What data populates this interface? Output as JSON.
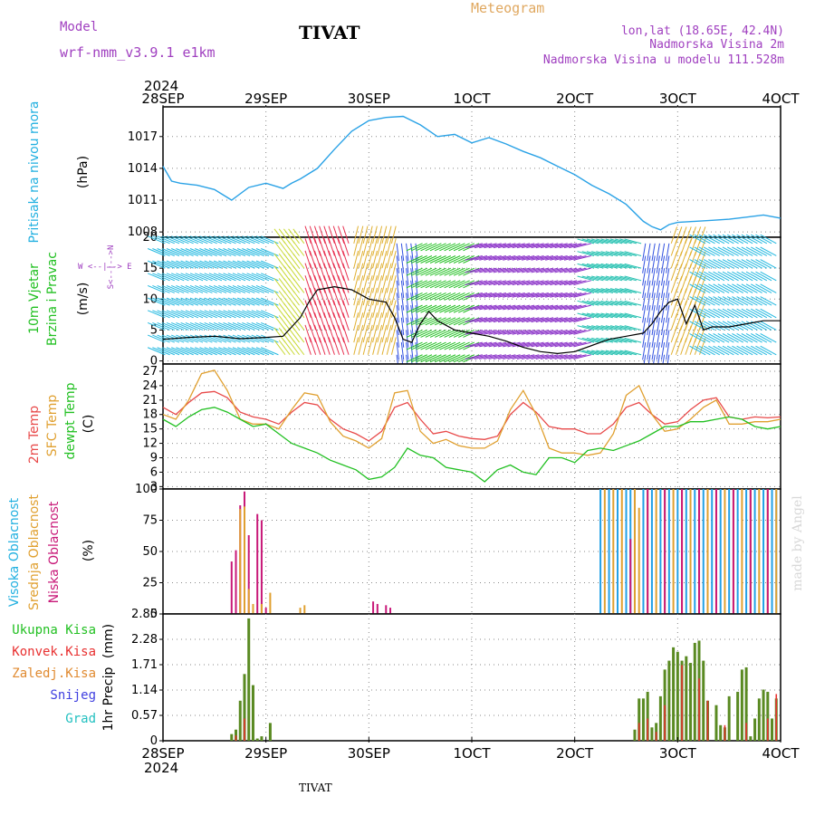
{
  "header": {
    "model_label": "Model",
    "model_name": "wrf-nmm_v3.9.1 e1km",
    "location_title": "TIVAT",
    "product_title": "Meteogram",
    "coords": "lon,lat (18.65E, 42.4N)",
    "elevation": "Nadmorska Visina 2m",
    "model_elevation": "Nadmorska Visina u modelu 111.528m"
  },
  "footer": {
    "location": "TIVAT",
    "credit": "made by Angel"
  },
  "time_axis": {
    "year": "2024",
    "ticks": [
      "28SEP",
      "29SEP",
      "30SEP",
      "1OCT",
      "2OCT",
      "3OCT",
      "4OCT"
    ]
  },
  "colors": {
    "pressure": "#2aa2e6",
    "wind_speed": "#000000",
    "temp_2m": "#e84a4a",
    "temp_sfc": "#e0a030",
    "dewpoint": "#22c022",
    "cloud_high": "#22a0e6",
    "cloud_mid": "#e0a030",
    "cloud_low": "#c81878",
    "precip_total": "#5a8a22",
    "precip_conv": "#e83030",
    "label_cyan": "#22b0e0",
    "label_green": "#22c022",
    "label_red": "#e83030",
    "label_orange": "#e08a30",
    "label_blue": "#4040e0",
    "label_teal": "#22c0c0",
    "label_magenta": "#c81878",
    "label_purple": "#a040c0"
  },
  "chart_data": [
    {
      "type": "line",
      "panel": "pressure",
      "ylabel_left": "Pritisak na nivou mora",
      "units": "(hPa)",
      "ylim": [
        1007.5,
        1019.8
      ],
      "yticks": [
        "1008",
        "1011",
        "1014",
        "1017"
      ],
      "x_range": [
        0,
        144
      ],
      "series": [
        {
          "key": "pressure",
          "x": [
            0,
            2,
            4,
            8,
            12,
            16,
            20,
            24,
            28,
            30,
            32,
            36,
            40,
            44,
            48,
            52,
            56,
            60,
            64,
            68,
            72,
            76,
            80,
            84,
            88,
            92,
            96,
            100,
            104,
            108,
            112,
            114,
            116,
            118,
            120,
            124,
            128,
            132,
            136,
            140,
            144
          ],
          "y": [
            1014.2,
            1012.8,
            1012.6,
            1012.4,
            1012.0,
            1011.0,
            1012.2,
            1012.6,
            1012.1,
            1012.6,
            1013.0,
            1014.0,
            1015.8,
            1017.5,
            1018.5,
            1018.8,
            1018.9,
            1018.1,
            1017.0,
            1017.2,
            1016.4,
            1016.9,
            1016.3,
            1015.6,
            1015.0,
            1014.2,
            1013.4,
            1012.4,
            1011.6,
            1010.6,
            1009.0,
            1008.5,
            1008.2,
            1008.7,
            1008.9,
            1009.0,
            1009.1,
            1009.2,
            1009.4,
            1009.6,
            1009.3
          ]
        }
      ]
    },
    {
      "type": "line",
      "panel": "wind",
      "ylabel_left1": "10m Vjetar",
      "ylabel_left2": "Brzina i Pravac",
      "units": "(m/s)",
      "legend_compass": "W <--|--> E",
      "legend_compass_v": "S<--|-->N",
      "ylim": [
        -0.5,
        20
      ],
      "yticks": [
        "0",
        "5",
        "10",
        "15",
        "20"
      ],
      "x_range": [
        0,
        144
      ],
      "series": [
        {
          "key": "wind_speed",
          "x": [
            0,
            6,
            12,
            18,
            24,
            28,
            30,
            32,
            34,
            36,
            40,
            44,
            48,
            52,
            54,
            56,
            58,
            60,
            62,
            64,
            68,
            72,
            76,
            80,
            84,
            88,
            92,
            96,
            100,
            104,
            108,
            112,
            114,
            116,
            118,
            120,
            122,
            124,
            126,
            128,
            132,
            136,
            140,
            144
          ],
          "y": [
            3.5,
            3.8,
            4.0,
            3.6,
            3.8,
            4.0,
            5.5,
            7.0,
            9.5,
            11.5,
            12.0,
            11.5,
            10.0,
            9.5,
            7.0,
            3.5,
            3.0,
            6.0,
            8.0,
            6.5,
            5.0,
            4.5,
            4.0,
            3.2,
            2.2,
            1.5,
            1.2,
            1.5,
            2.5,
            3.5,
            4.0,
            4.5,
            6.0,
            8.0,
            9.5,
            10.0,
            6.0,
            9.0,
            5.0,
            5.5,
            5.5,
            6.0,
            6.5,
            6.5
          ]
        }
      ],
      "barbs": {
        "rows_y": [
          1,
          3,
          5,
          7,
          9,
          11,
          13,
          15,
          17,
          19
        ],
        "direction_segments": [
          {
            "x_from": 0,
            "x_to": 28,
            "u": -2.4,
            "v": 1.0,
            "color": "#22b8e0"
          },
          {
            "x_from": 28,
            "x_to": 34,
            "u": -1.5,
            "v": 2.0,
            "color": "#c8d830"
          },
          {
            "x_from": 34,
            "x_to": 44,
            "u": -0.8,
            "v": 2.4,
            "color": "#e83050"
          },
          {
            "x_from": 44,
            "x_to": 54,
            "u": 0.6,
            "v": 2.4,
            "color": "#e0b030"
          },
          {
            "x_from": 54,
            "x_to": 60,
            "u": 0.3,
            "v": -2.4,
            "color": "#3050e0"
          },
          {
            "x_from": 60,
            "x_to": 74,
            "u": -2.2,
            "v": -1.0,
            "color": "#22c022"
          },
          {
            "x_from": 74,
            "x_to": 100,
            "u": -2.4,
            "v": -0.6,
            "color": "#8a30c8"
          },
          {
            "x_from": 100,
            "x_to": 112,
            "u": -2.3,
            "v": 0.6,
            "color": "#22c0b0"
          },
          {
            "x_from": 112,
            "x_to": 118,
            "u": -0.4,
            "v": -2.4,
            "color": "#3050e0"
          },
          {
            "x_from": 118,
            "x_to": 126,
            "u": 0.8,
            "v": 2.3,
            "color": "#e0b030"
          },
          {
            "x_from": 126,
            "x_to": 144,
            "u": -2.2,
            "v": 1.2,
            "color": "#22b8e0"
          }
        ]
      }
    },
    {
      "type": "line",
      "panel": "temperature",
      "ylabel_left1": "2m Temp",
      "ylabel_left2": "SFC Temp",
      "ylabel_left3": "dewpt Temp",
      "units": "(C)",
      "ylim": [
        2.5,
        28.5
      ],
      "yticks": [
        "3",
        "6",
        "9",
        "12",
        "15",
        "18",
        "21",
        "24",
        "27"
      ],
      "x_range": [
        0,
        144
      ],
      "series": [
        {
          "key": "temp_2m",
          "x": [
            0,
            3,
            6,
            9,
            12,
            15,
            18,
            21,
            24,
            27,
            30,
            33,
            36,
            39,
            42,
            45,
            48,
            51,
            54,
            57,
            60,
            63,
            66,
            69,
            72,
            75,
            78,
            81,
            84,
            87,
            90,
            93,
            96,
            99,
            102,
            105,
            108,
            111,
            114,
            117,
            120,
            123,
            126,
            129,
            132,
            135,
            138,
            141,
            144
          ],
          "y": [
            19.5,
            18.0,
            20.5,
            22.5,
            22.8,
            21.5,
            18.5,
            17.5,
            17.0,
            16.0,
            18.5,
            20.5,
            20.0,
            17.0,
            15.0,
            14.0,
            12.5,
            14.5,
            19.5,
            20.5,
            17.0,
            14.0,
            14.5,
            13.5,
            13.0,
            12.8,
            13.5,
            18.0,
            20.5,
            18.5,
            15.5,
            15.0,
            15.0,
            14.0,
            14.0,
            16.0,
            19.5,
            20.5,
            18.0,
            16.0,
            16.5,
            19.0,
            21.0,
            21.5,
            17.5,
            17.0,
            17.5,
            17.3,
            17.5
          ]
        },
        {
          "key": "temp_sfc",
          "x": [
            0,
            3,
            6,
            9,
            12,
            15,
            18,
            21,
            24,
            27,
            30,
            33,
            36,
            39,
            42,
            45,
            48,
            51,
            54,
            57,
            60,
            63,
            66,
            69,
            72,
            75,
            78,
            81,
            84,
            87,
            90,
            93,
            96,
            99,
            102,
            105,
            108,
            111,
            114,
            117,
            120,
            123,
            126,
            129,
            132,
            135,
            138,
            141,
            144
          ],
          "y": [
            18.0,
            17.0,
            21.0,
            26.5,
            27.2,
            23.0,
            17.0,
            16.0,
            16.0,
            15.0,
            19.0,
            22.5,
            22.0,
            16.5,
            13.5,
            12.5,
            11.0,
            13.0,
            22.5,
            23.0,
            14.5,
            12.0,
            12.8,
            11.5,
            11.0,
            11.0,
            12.5,
            19.0,
            23.0,
            18.0,
            11.0,
            10.0,
            10.0,
            9.5,
            10.0,
            14.0,
            22.0,
            24.0,
            18.0,
            14.5,
            15.0,
            17.0,
            19.5,
            21.0,
            16.0,
            16.0,
            16.5,
            16.5,
            17.0
          ]
        },
        {
          "key": "dewpoint",
          "x": [
            0,
            3,
            6,
            9,
            12,
            15,
            18,
            21,
            24,
            27,
            30,
            33,
            36,
            39,
            42,
            45,
            48,
            51,
            54,
            57,
            60,
            63,
            66,
            69,
            72,
            75,
            78,
            81,
            84,
            87,
            90,
            93,
            96,
            99,
            102,
            105,
            108,
            111,
            114,
            117,
            120,
            123,
            126,
            129,
            132,
            135,
            138,
            141,
            144
          ],
          "y": [
            17.0,
            15.5,
            17.5,
            19.0,
            19.5,
            18.5,
            17.0,
            15.5,
            16.0,
            14.0,
            12.0,
            11.0,
            10.0,
            8.5,
            7.5,
            6.5,
            4.5,
            5.0,
            7.0,
            11.0,
            9.5,
            9.0,
            7.0,
            6.5,
            6.0,
            4.0,
            6.5,
            7.5,
            6.0,
            5.5,
            9.0,
            9.0,
            8.0,
            10.5,
            11.0,
            10.5,
            11.5,
            12.5,
            14.0,
            15.5,
            15.5,
            16.5,
            16.5,
            17.0,
            17.5,
            17.0,
            15.5,
            15.0,
            15.5
          ]
        }
      ]
    },
    {
      "type": "bar",
      "panel": "clouds",
      "ylabel_left1": "Visoka Oblacnost",
      "ylabel_left2": "Srednja Oblacnost",
      "ylabel_left3": "Niska Oblacnost",
      "units": "(%)",
      "ylim": [
        0,
        100
      ],
      "yticks": [
        "0",
        "25",
        "50",
        "75",
        "100"
      ],
      "x_range": [
        0,
        144
      ],
      "series": [
        {
          "key": "cloud_low",
          "x": [
            16,
            17,
            18,
            19,
            20,
            22,
            23,
            24,
            49,
            50,
            52,
            53
          ],
          "y": [
            42,
            51,
            87,
            98,
            63,
            80,
            75,
            5,
            10,
            8,
            7,
            5
          ]
        },
        {
          "key": "cloud_mid",
          "x": [
            18,
            19,
            20,
            21,
            23,
            25,
            32,
            33
          ],
          "y": [
            84,
            86,
            20,
            8,
            8,
            17,
            5,
            7
          ]
        },
        {
          "key": "cloud_high",
          "x": [
            102,
            104,
            106,
            108,
            109,
            110,
            112,
            114,
            116,
            118,
            120,
            122,
            124,
            126,
            128,
            130,
            132,
            134,
            136,
            138,
            140,
            142,
            143
          ],
          "y": [
            100,
            100,
            100,
            100,
            100,
            100,
            100,
            100,
            100,
            100,
            100,
            100,
            100,
            100,
            100,
            100,
            100,
            100,
            100,
            100,
            100,
            100,
            100
          ]
        },
        {
          "key": "cloud_mid",
          "x": [
            103,
            105,
            107,
            110,
            111,
            113,
            115,
            117,
            119,
            121,
            123,
            125,
            127,
            129,
            131,
            133,
            135,
            137,
            139,
            141,
            143
          ],
          "y": [
            100,
            100,
            100,
            100,
            85,
            100,
            100,
            100,
            100,
            100,
            100,
            100,
            100,
            100,
            100,
            100,
            100,
            100,
            100,
            100,
            100
          ]
        },
        {
          "key": "cloud_low",
          "x": [
            109,
            113,
            117,
            121,
            125,
            129,
            133,
            137,
            141
          ],
          "y": [
            60,
            100,
            100,
            100,
            100,
            100,
            100,
            100,
            100
          ]
        }
      ]
    },
    {
      "type": "bar",
      "panel": "precip",
      "legend": [
        "Ukupna Kisa",
        "Konvek.Kisa",
        "Zaledj.Kisa",
        "Snijeg",
        "Grad"
      ],
      "ylabel_left": "1hr Precip",
      "units": "(mm)",
      "ylim": [
        0,
        2.85
      ],
      "yticks": [
        "0",
        "0.57",
        "1.14",
        "1.71",
        "2.28",
        "2.85"
      ],
      "x_range": [
        0,
        144
      ],
      "series": [
        {
          "key": "precip_total",
          "x": [
            16,
            17,
            18,
            19,
            20,
            21,
            22,
            23,
            25
          ],
          "y": [
            0.15,
            0.25,
            0.9,
            1.5,
            2.75,
            1.25,
            0.05,
            0.1,
            0.4
          ]
        },
        {
          "key": "precip_total",
          "x": [
            110,
            111,
            112,
            113,
            114,
            115,
            116,
            117,
            118,
            119,
            120,
            121,
            122,
            123,
            124,
            125,
            126,
            127,
            129,
            130,
            131,
            132,
            134,
            135,
            136,
            137,
            138,
            139,
            140,
            141,
            142,
            143
          ],
          "y": [
            0.25,
            0.95,
            0.95,
            1.1,
            0.3,
            0.4,
            1.0,
            1.6,
            1.8,
            2.1,
            2.0,
            1.8,
            1.9,
            1.75,
            2.2,
            2.25,
            1.8,
            0.9,
            0.8,
            0.35,
            0.3,
            1.0,
            1.1,
            1.6,
            1.65,
            0.1,
            0.5,
            0.95,
            1.15,
            1.1,
            0.5,
            0.95
          ]
        },
        {
          "key": "precip_conv",
          "x": [
            17,
            19,
            111,
            113,
            115,
            117,
            121,
            125,
            127,
            131,
            136,
            141,
            143
          ],
          "y": [
            0.12,
            0.5,
            0.4,
            0.5,
            0.2,
            0.8,
            1.7,
            1.4,
            0.9,
            0.35,
            0.4,
            0.5,
            1.05
          ]
        }
      ]
    }
  ]
}
